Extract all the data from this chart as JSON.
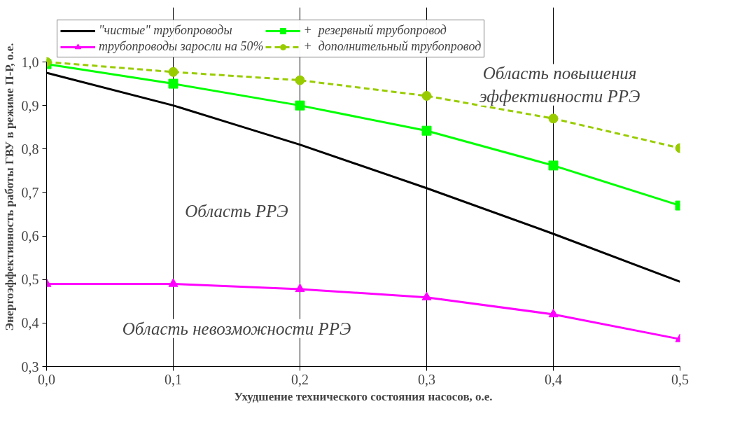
{
  "chart_data": {
    "type": "line",
    "xlabel": "Ухудшение технического состояния насосов, о.е.",
    "ylabel": "Энергоэффективность работы ГВУ в режиме П-Р, о.е.",
    "x": [
      0,
      0.1,
      0.2,
      0.3,
      0.4,
      0.5
    ],
    "series": [
      {
        "name": "\"чистые\" трубопроводы",
        "color": "#000000",
        "marker": "none",
        "line_style": "solid",
        "x": [
          0,
          0.1,
          0.15,
          0.2,
          0.3,
          0.4,
          0.5
        ],
        "values": [
          0.975,
          0.9,
          0.855,
          0.81,
          0.71,
          0.605,
          0.495
        ]
      },
      {
        "name": "трубопроводы заросли на 50%",
        "color": "#ff00ff",
        "marker": "triangle",
        "line_style": "solid",
        "values": [
          0.49,
          0.49,
          0.478,
          0.459,
          0.42,
          0.363
        ]
      },
      {
        "name": "+  резервный трубопровод",
        "color": "#00ff00",
        "marker": "square",
        "line_style": "solid",
        "values": [
          0.995,
          0.95,
          0.9,
          0.842,
          0.762,
          0.67
        ]
      },
      {
        "name": "+  дополнительный трубопровод",
        "color": "#99cc00",
        "marker": "circle",
        "line_style": "dashed",
        "values": [
          1.0,
          0.977,
          0.958,
          0.922,
          0.87,
          0.802
        ]
      }
    ],
    "xlim": [
      0,
      0.5
    ],
    "ylim": [
      0.3,
      1.0
    ],
    "xticks": [
      {
        "value": 0,
        "label": "0,0"
      },
      {
        "value": 0.1,
        "label": "0,1"
      },
      {
        "value": 0.2,
        "label": "0,2"
      },
      {
        "value": 0.3,
        "label": "0,3"
      },
      {
        "value": 0.4,
        "label": "0,4"
      },
      {
        "value": 0.5,
        "label": "0,5"
      }
    ],
    "yticks": [
      {
        "value": 0.3,
        "label": "0,3"
      },
      {
        "value": 0.4,
        "label": "0,4"
      },
      {
        "value": 0.5,
        "label": "0,5"
      },
      {
        "value": 0.6,
        "label": "0,6"
      },
      {
        "value": 0.7,
        "label": "0,7"
      },
      {
        "value": 0.8,
        "label": "0,8"
      },
      {
        "value": 0.9,
        "label": "0,9"
      },
      {
        "value": 1.0,
        "label": "1,0"
      }
    ],
    "annotations": [
      "Область повышения\nэффективности РРЭ",
      "Область РРЭ",
      "Область невозможности РРЭ"
    ],
    "grid": "x",
    "legend": "top"
  }
}
